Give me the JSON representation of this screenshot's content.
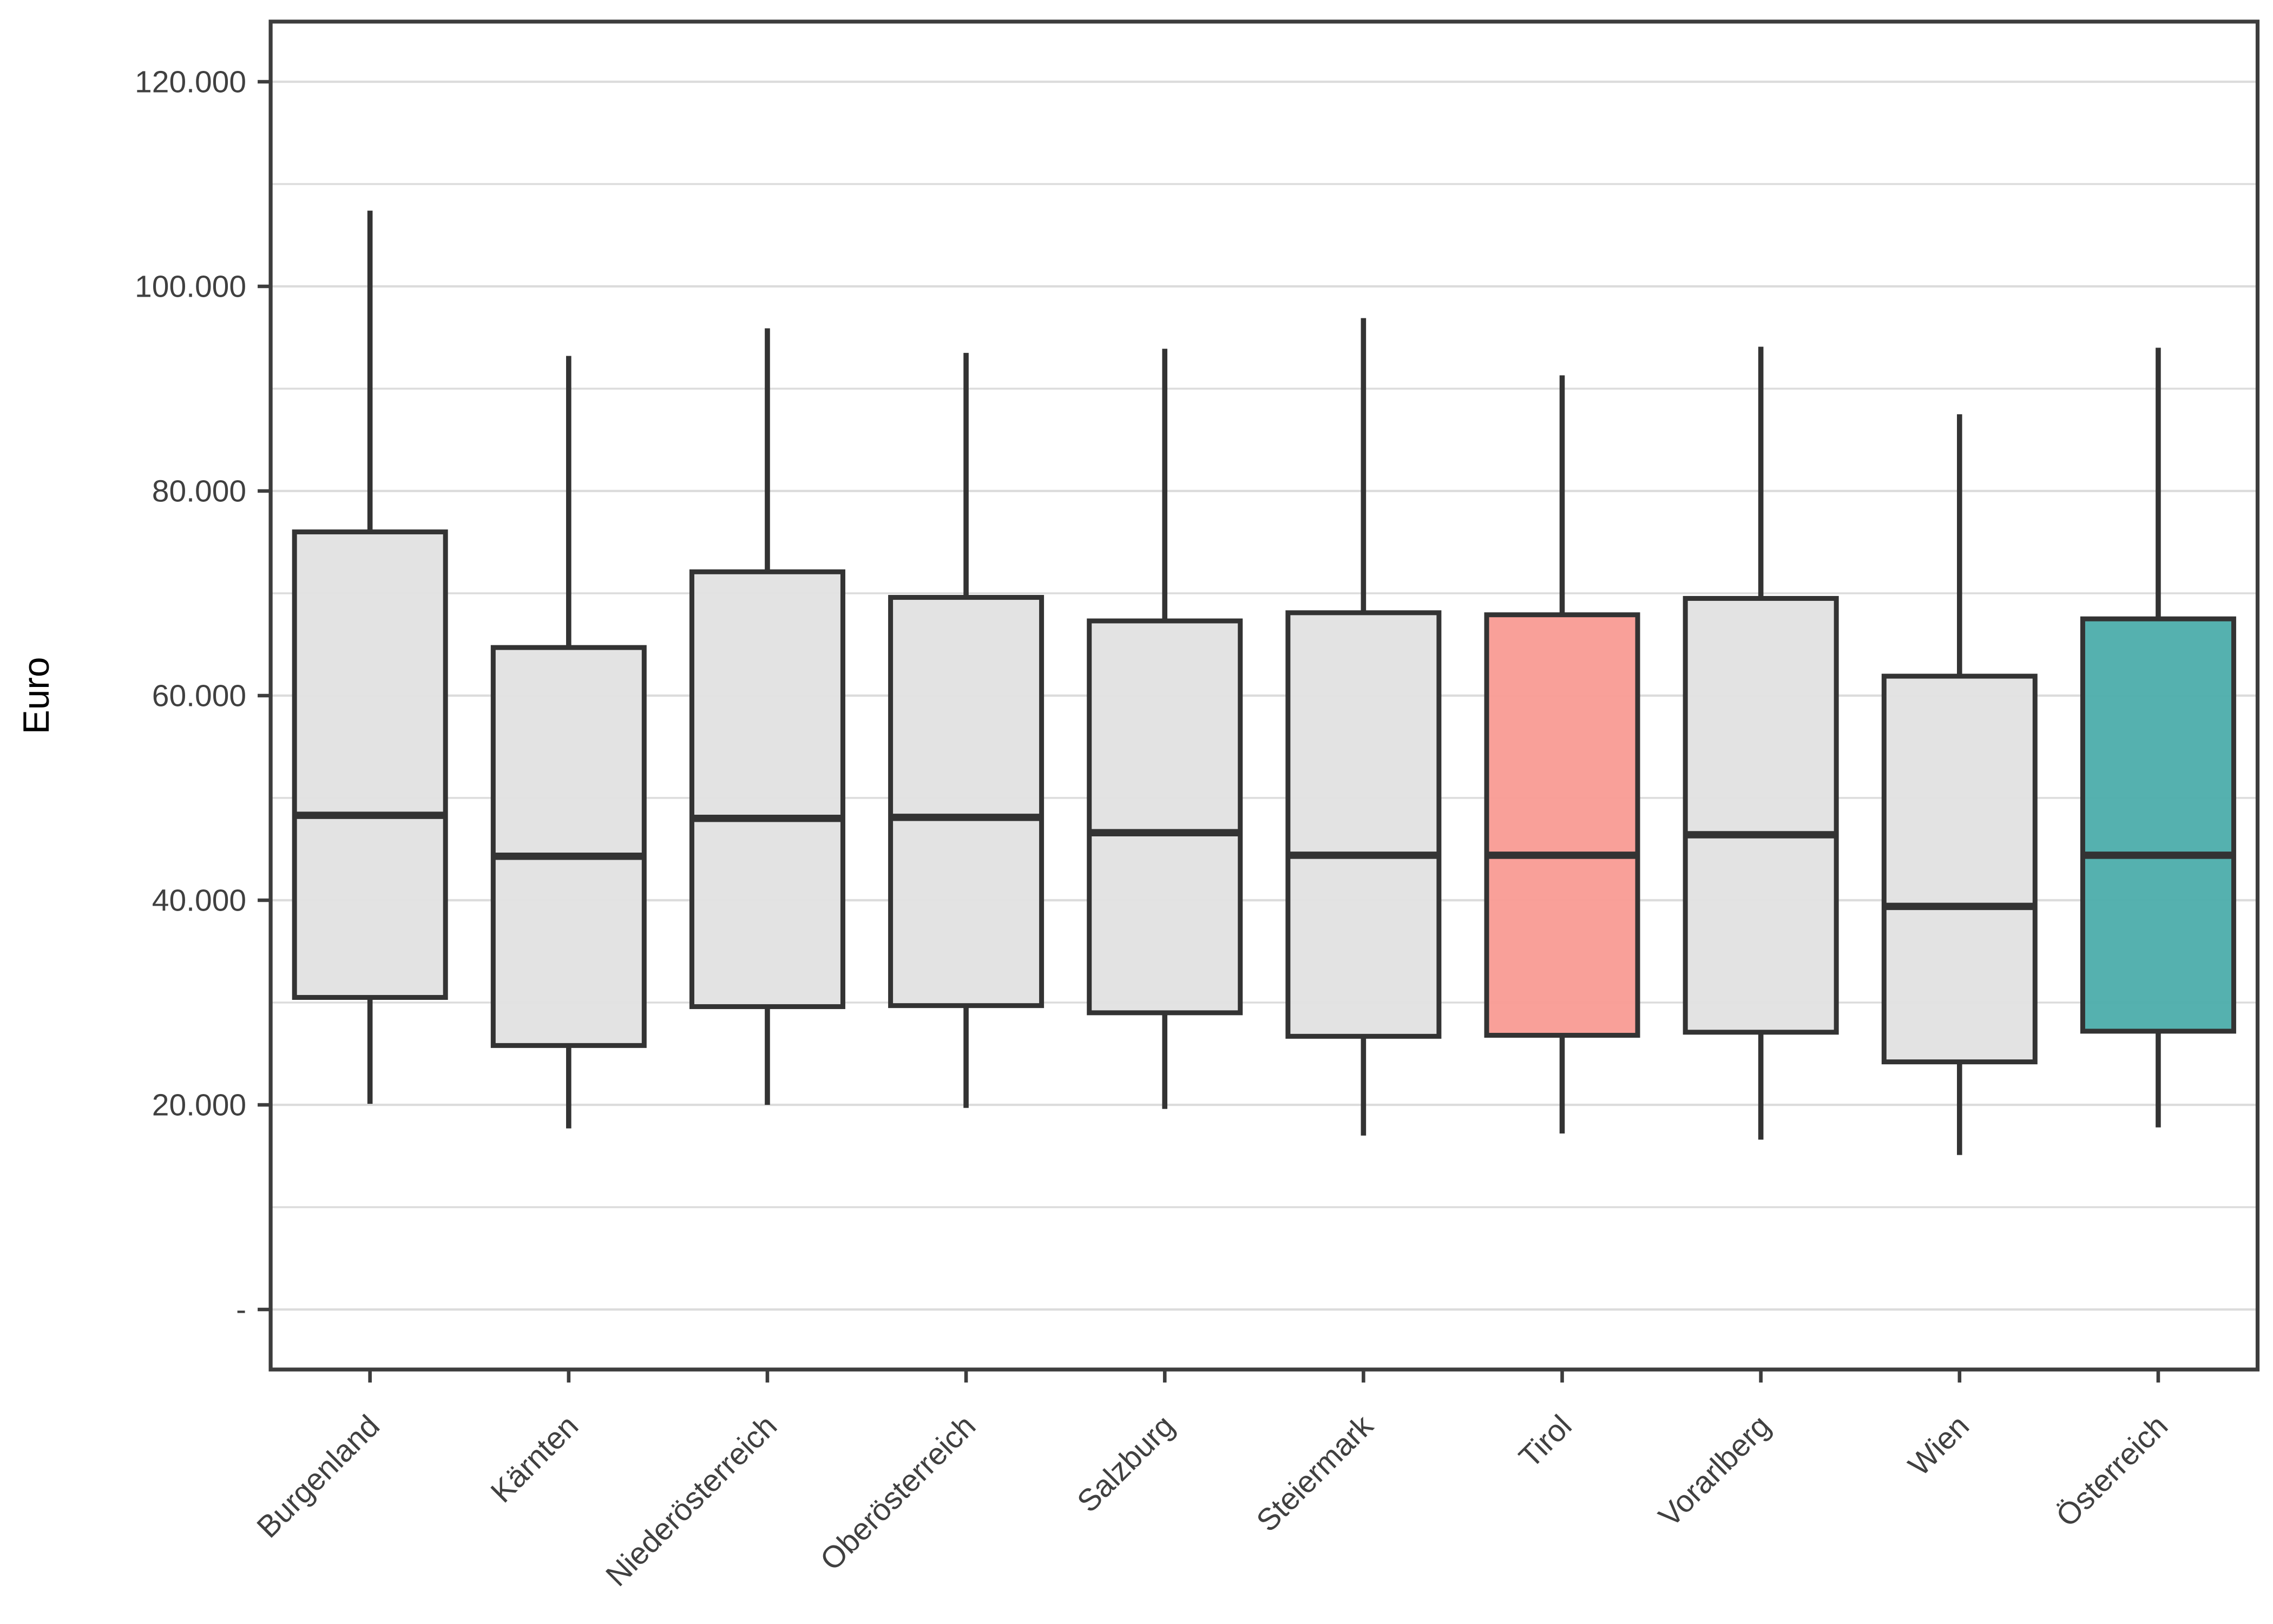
{
  "chart_data": {
    "type": "boxplot",
    "title": "",
    "xlabel": "",
    "ylabel": "Euro",
    "legend_position": "none",
    "grid": {
      "visible": true,
      "minor_step": 10000,
      "major_step": 20000
    },
    "ylim": [
      0,
      126000
    ],
    "yticks": {
      "values": [
        120000,
        100000,
        80000,
        60000,
        40000,
        20000,
        0
      ],
      "labels": [
        "120.000",
        "100.000",
        "80.000",
        "60.000",
        "40.000",
        "20.000",
        "-"
      ]
    },
    "categories": [
      "Burgenland",
      "Kärnten",
      "Niederösterreich",
      "Oberösterreich",
      "Salzburg",
      "Steiermark",
      "Tirol",
      "Vorarlberg",
      "Wien",
      "Österreich"
    ],
    "series": [
      {
        "name": "Burgenland",
        "min": 20100,
        "q1": 30500,
        "median": 48300,
        "q3": 76000,
        "max": 107400,
        "fill": "#E2E2E2"
      },
      {
        "name": "Kärnten",
        "min": 17700,
        "q1": 25800,
        "median": 44300,
        "q3": 64700,
        "max": 93200,
        "fill": "#E2E2E2"
      },
      {
        "name": "Niederösterreich",
        "min": 20000,
        "q1": 29600,
        "median": 48000,
        "q3": 72100,
        "max": 95900,
        "fill": "#E2E2E2"
      },
      {
        "name": "Oberösterreich",
        "min": 19700,
        "q1": 29700,
        "median": 48100,
        "q3": 69600,
        "max": 93500,
        "fill": "#E2E2E2"
      },
      {
        "name": "Salzburg",
        "min": 19600,
        "q1": 29000,
        "median": 46600,
        "q3": 67300,
        "max": 93900,
        "fill": "#E2E2E2"
      },
      {
        "name": "Steiermark",
        "min": 17000,
        "q1": 26700,
        "median": 44400,
        "q3": 68100,
        "max": 96900,
        "fill": "#E2E2E2"
      },
      {
        "name": "Tirol",
        "min": 17200,
        "q1": 26800,
        "median": 44400,
        "q3": 67900,
        "max": 91300,
        "fill": "#F99B94"
      },
      {
        "name": "Vorarlberg",
        "min": 16600,
        "q1": 27100,
        "median": 46400,
        "q3": 69500,
        "max": 94100,
        "fill": "#E2E2E2"
      },
      {
        "name": "Wien",
        "min": 15100,
        "q1": 24200,
        "median": 39400,
        "q3": 61900,
        "max": 87500,
        "fill": "#E2E2E2"
      },
      {
        "name": "Österreich",
        "min": 17800,
        "q1": 27200,
        "median": 44400,
        "q3": 67500,
        "max": 94000,
        "fill": "#4CADAB"
      }
    ],
    "colors": {
      "default_box_fill": "#E2E2E2",
      "tirol_box_fill": "#F99B94",
      "oesterreich_box_fill": "#4CADAB",
      "box_stroke": "#333333",
      "gridline": "#DCDCDC",
      "panel_border": "#3D3D3D",
      "tick_text": "#404040",
      "axis_title_text": "#000000",
      "background": "#FFFFFF"
    }
  }
}
